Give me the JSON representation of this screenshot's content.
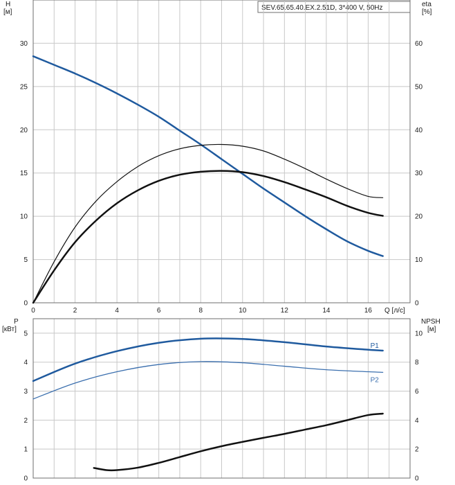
{
  "model_label": "SEV.65.65.40.EX.2.51D, 3*400 V, 50Hz",
  "colors": {
    "head": "#1f5a9e",
    "p1": "#1f5a9e",
    "p2": "#3b6fae",
    "eta": "#111111",
    "npsh": "#111111",
    "grid": "#c8c8c8",
    "frame": "#6e6e6e"
  },
  "chart_data": [
    {
      "type": "line",
      "panel": "top",
      "xlabel": "Q [л/с]",
      "x_ticks": [
        "0",
        "2",
        "4",
        "6",
        "8",
        "10",
        "12",
        "14",
        "16"
      ],
      "xlim": [
        0,
        18
      ],
      "y_left": {
        "label_top": "H",
        "label_unit": "[м]",
        "ticks": [
          "0",
          "5",
          "10",
          "15",
          "20",
          "25",
          "30"
        ],
        "lim": [
          0,
          35
        ]
      },
      "y_right": {
        "label_top": "eta",
        "label_unit": "[%]",
        "ticks": [
          "0",
          "10",
          "20",
          "30",
          "40",
          "50",
          "60"
        ],
        "lim": [
          0,
          70
        ]
      },
      "grid": true,
      "series": [
        {
          "key": "H",
          "axis": "left",
          "width": 2.5,
          "color": "#1f5a9e",
          "x": [
            0,
            1,
            2,
            3,
            4,
            5,
            6,
            7,
            8,
            9,
            10,
            11,
            12,
            13,
            14,
            15,
            16,
            16.7
          ],
          "y": [
            28.5,
            27.5,
            26.5,
            25.4,
            24.2,
            22.9,
            21.5,
            19.9,
            18.3,
            16.6,
            14.9,
            13.2,
            11.6,
            10.0,
            8.5,
            7.1,
            6.0,
            5.4
          ]
        },
        {
          "key": "eta_thin",
          "axis": "right",
          "width": 1.2,
          "color": "#111111",
          "x": [
            0,
            1,
            2,
            3,
            4,
            5,
            6,
            7,
            8,
            9,
            10,
            11,
            12,
            13,
            14,
            15,
            16,
            16.7
          ],
          "y": [
            0,
            9.5,
            17.5,
            23.5,
            28,
            31.5,
            34,
            35.6,
            36.4,
            36.6,
            36.2,
            35.1,
            33.2,
            31,
            28.6,
            26.4,
            24.6,
            24.3
          ]
        },
        {
          "key": "eta_thick",
          "axis": "right",
          "width": 2.5,
          "color": "#111111",
          "x": [
            0,
            1,
            2,
            3,
            4,
            5,
            6,
            7,
            8,
            9,
            10,
            11,
            12,
            13,
            14,
            15,
            16,
            16.7
          ],
          "y": [
            0,
            7.5,
            14,
            19,
            23,
            26,
            28.2,
            29.6,
            30.3,
            30.5,
            30.2,
            29.3,
            27.9,
            26.2,
            24.4,
            22.4,
            20.8,
            20.1
          ]
        }
      ]
    },
    {
      "type": "line",
      "panel": "bottom",
      "xlim": [
        0,
        18
      ],
      "y_left": {
        "label_top": "P",
        "label_unit": "[кВт]",
        "ticks": [
          "0",
          "1",
          "2",
          "3",
          "4",
          "5"
        ],
        "lim": [
          0,
          5.5
        ]
      },
      "y_right": {
        "label_top": "NPSH",
        "label_unit": "[м]",
        "ticks": [
          "0",
          "2",
          "4",
          "6",
          "8",
          "10"
        ],
        "lim": [
          0,
          11
        ]
      },
      "grid": true,
      "series": [
        {
          "key": "P1",
          "name": "P1",
          "axis": "left",
          "width": 2.5,
          "color": "#1f5a9e",
          "x": [
            0,
            2,
            4,
            6,
            8,
            10,
            12,
            14,
            16,
            16.7
          ],
          "y": [
            3.35,
            3.95,
            4.38,
            4.67,
            4.81,
            4.8,
            4.69,
            4.54,
            4.43,
            4.4
          ]
        },
        {
          "key": "P2",
          "name": "P2",
          "axis": "left",
          "width": 1.3,
          "color": "#3b6fae",
          "x": [
            0,
            2,
            4,
            6,
            8,
            10,
            12,
            14,
            16,
            16.7
          ],
          "y": [
            2.73,
            3.28,
            3.67,
            3.92,
            4.02,
            3.98,
            3.86,
            3.74,
            3.67,
            3.65
          ]
        },
        {
          "key": "NPSH",
          "axis": "right",
          "width": 2.5,
          "color": "#111111",
          "x": [
            2.9,
            3.5,
            4,
            5,
            6,
            7,
            8,
            9,
            10,
            11,
            12,
            13,
            14,
            15,
            16,
            16.7
          ],
          "y": [
            0.7,
            0.55,
            0.55,
            0.72,
            1.05,
            1.45,
            1.85,
            2.2,
            2.5,
            2.78,
            3.05,
            3.35,
            3.65,
            4.0,
            4.35,
            4.45
          ]
        }
      ]
    }
  ]
}
